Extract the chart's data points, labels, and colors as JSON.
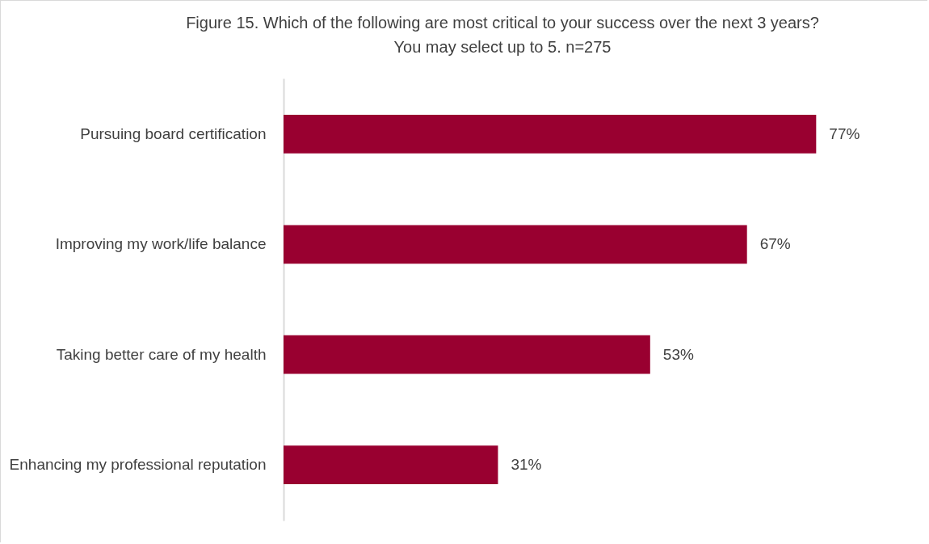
{
  "chart_data": {
    "type": "bar",
    "orientation": "horizontal",
    "title": "Figure 15. Which of the following are most critical to your success over the next 3 years? You may select up to 5.          n=275",
    "categories": [
      "Pursuing board certification",
      "Improving my work/life balance",
      "Taking better care of my health",
      "Enhancing my professional reputation"
    ],
    "values": [
      77,
      67,
      53,
      31
    ],
    "color": "#990030",
    "value_labels": [
      "77%",
      "67%",
      "53%",
      "31%"
    ],
    "tick_labels": "y"
  }
}
